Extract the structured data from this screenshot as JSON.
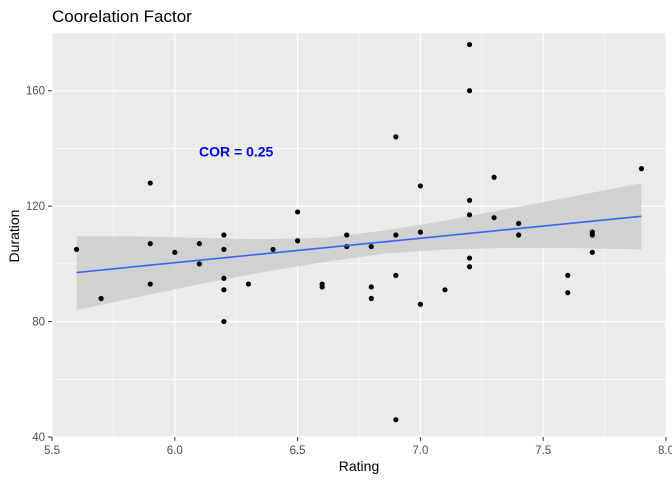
{
  "chart_data": {
    "type": "scatter",
    "title": "Coorelation Factor",
    "xlabel": "Rating",
    "ylabel": "Duration",
    "xlim": [
      5.5,
      8.0
    ],
    "ylim": [
      40,
      180
    ],
    "x_ticks": [
      5.5,
      6.0,
      6.5,
      7.0,
      7.5,
      8.0
    ],
    "x_tick_labels": [
      "5.5",
      "6.0",
      "6.5",
      "7.0",
      "7.5",
      "8.0"
    ],
    "y_ticks": [
      40,
      80,
      120,
      160
    ],
    "y_tick_labels": [
      "40",
      "80",
      "120",
      "160"
    ],
    "grid": true,
    "points": [
      {
        "x": 5.6,
        "y": 105
      },
      {
        "x": 5.7,
        "y": 88
      },
      {
        "x": 5.9,
        "y": 128
      },
      {
        "x": 5.9,
        "y": 107
      },
      {
        "x": 5.9,
        "y": 93
      },
      {
        "x": 6.0,
        "y": 104
      },
      {
        "x": 6.1,
        "y": 107
      },
      {
        "x": 6.1,
        "y": 100
      },
      {
        "x": 6.2,
        "y": 110
      },
      {
        "x": 6.2,
        "y": 105
      },
      {
        "x": 6.2,
        "y": 95
      },
      {
        "x": 6.2,
        "y": 91
      },
      {
        "x": 6.2,
        "y": 80
      },
      {
        "x": 6.3,
        "y": 93
      },
      {
        "x": 6.4,
        "y": 105
      },
      {
        "x": 6.5,
        "y": 118
      },
      {
        "x": 6.5,
        "y": 108
      },
      {
        "x": 6.6,
        "y": 93
      },
      {
        "x": 6.6,
        "y": 92
      },
      {
        "x": 6.7,
        "y": 110
      },
      {
        "x": 6.7,
        "y": 106
      },
      {
        "x": 6.8,
        "y": 106
      },
      {
        "x": 6.8,
        "y": 92
      },
      {
        "x": 6.8,
        "y": 88
      },
      {
        "x": 6.9,
        "y": 144
      },
      {
        "x": 6.9,
        "y": 110
      },
      {
        "x": 6.9,
        "y": 96
      },
      {
        "x": 6.9,
        "y": 46
      },
      {
        "x": 7.0,
        "y": 127
      },
      {
        "x": 7.0,
        "y": 111
      },
      {
        "x": 7.0,
        "y": 86
      },
      {
        "x": 7.1,
        "y": 91
      },
      {
        "x": 7.2,
        "y": 176
      },
      {
        "x": 7.2,
        "y": 160
      },
      {
        "x": 7.2,
        "y": 122
      },
      {
        "x": 7.2,
        "y": 117
      },
      {
        "x": 7.2,
        "y": 102
      },
      {
        "x": 7.2,
        "y": 99
      },
      {
        "x": 7.3,
        "y": 130
      },
      {
        "x": 7.3,
        "y": 116
      },
      {
        "x": 7.4,
        "y": 114
      },
      {
        "x": 7.4,
        "y": 110
      },
      {
        "x": 7.6,
        "y": 96
      },
      {
        "x": 7.6,
        "y": 90
      },
      {
        "x": 7.7,
        "y": 111
      },
      {
        "x": 7.7,
        "y": 110
      },
      {
        "x": 7.7,
        "y": 104
      },
      {
        "x": 7.9,
        "y": 133
      }
    ],
    "trend_line": {
      "x": [
        5.6,
        7.9
      ],
      "y": [
        97,
        116.5
      ],
      "color": "#3366ff"
    },
    "confidence_band": {
      "x": [
        5.6,
        5.85,
        6.1,
        6.35,
        6.6,
        6.85,
        7.1,
        7.35,
        7.6,
        7.9
      ],
      "upper": [
        109.5,
        109.5,
        109,
        108.5,
        109,
        111.5,
        115,
        119,
        123,
        128
      ],
      "lower": [
        84,
        88.5,
        93,
        97,
        100.5,
        103.5,
        105,
        105.5,
        105.5,
        105
      ],
      "color": "#cccccc"
    },
    "annotations": [
      {
        "text": "COR = 0.25",
        "x": 6.25,
        "y": 139,
        "color": "#0000ff"
      }
    ],
    "colors": {
      "panel": "#ebebeb",
      "grid": "#ffffff",
      "point": "#000000"
    }
  }
}
